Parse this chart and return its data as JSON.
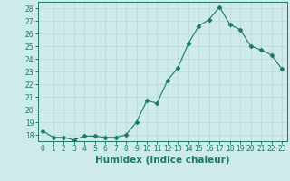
{
  "x": [
    0,
    1,
    2,
    3,
    4,
    5,
    6,
    7,
    8,
    9,
    10,
    11,
    12,
    13,
    14,
    15,
    16,
    17,
    18,
    19,
    20,
    21,
    22,
    23
  ],
  "y": [
    18.3,
    17.8,
    17.8,
    17.6,
    17.9,
    17.9,
    17.8,
    17.8,
    18.0,
    19.0,
    20.7,
    20.5,
    22.3,
    23.3,
    25.2,
    26.6,
    27.1,
    28.1,
    26.7,
    26.3,
    25.0,
    24.7,
    24.3,
    23.2
  ],
  "xlabel": "Humidex (Indice chaleur)",
  "line_color": "#1a7a5e",
  "marker": "D",
  "marker_size": 2.5,
  "background_color": "#ceeaea",
  "grid_color": "#b8d8d8",
  "ylim_min": 17.5,
  "ylim_max": 28.5,
  "xlim_min": -0.5,
  "xlim_max": 23.5,
  "yticks": [
    18,
    19,
    20,
    21,
    22,
    23,
    24,
    25,
    26,
    27,
    28
  ],
  "xticks": [
    0,
    1,
    2,
    3,
    4,
    5,
    6,
    7,
    8,
    9,
    10,
    11,
    12,
    13,
    14,
    15,
    16,
    17,
    18,
    19,
    20,
    21,
    22,
    23
  ],
  "tick_fontsize": 5.5,
  "xlabel_fontsize": 7.5,
  "linewidth": 0.8
}
